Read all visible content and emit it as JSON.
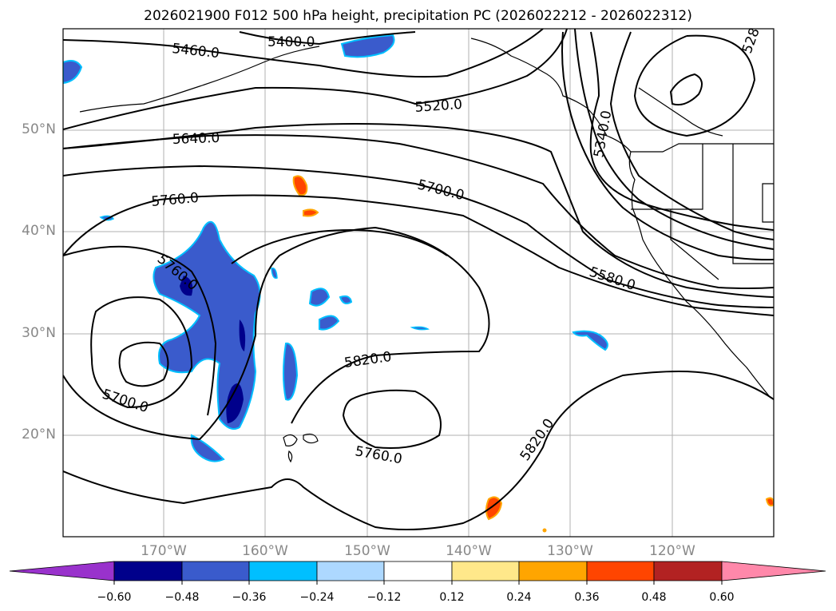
{
  "title": "2026021900 F012 500 hPa height, precipitation PC (2026022212 - 2026022312)",
  "axes": {
    "lat_ticks": [
      "50°N",
      "40°N",
      "30°N",
      "20°N"
    ],
    "lon_ticks": [
      "170°W",
      "160°W",
      "150°W",
      "140°W",
      "130°W",
      "120°W"
    ]
  },
  "contour_labels": [
    "5400.0",
    "5460.0",
    "5520.0",
    "5640.0",
    "5700.0",
    "5760.0",
    "5760.0",
    "5700.0",
    "5580.0",
    "5820.0",
    "5760.0",
    "5820.0",
    "5340.0",
    "528"
  ],
  "colorbar": {
    "ticks": [
      "−0.60",
      "−0.48",
      "−0.36",
      "−0.24",
      "−0.12",
      "0.12",
      "0.24",
      "0.36",
      "0.48",
      "0.60"
    ],
    "colors": [
      "#9932cc",
      "#00008b",
      "#3a5bcc",
      "#00bfff",
      "#add8ff",
      "#ffffff",
      "#ffe88a",
      "#ffa500",
      "#ff4500",
      "#b22222",
      "#ff88aa"
    ]
  },
  "fill_colors": {
    "blue_dark": "#00008b",
    "blue_mid": "#3a5bcc",
    "blue_light": "#00bfff",
    "blue_pale": "#add8ff",
    "orange": "#ffa500",
    "red_orange": "#ff4500"
  }
}
